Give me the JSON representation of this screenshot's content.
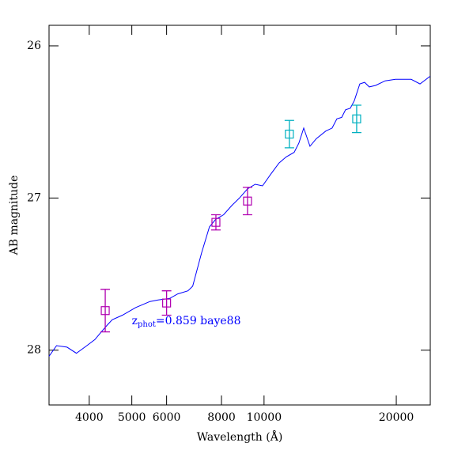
{
  "chart_data": {
    "type": "line",
    "xlabel": "Wavelength (Å)",
    "ylabel": "AB magnitude",
    "annotation": {
      "parts": [
        "z",
        "phot",
        "=0.859 baye88"
      ],
      "color": "#0000ff",
      "x": 5000,
      "y": 27.81
    },
    "log_x": true,
    "inverted_y": true,
    "xlim": [
      3240,
      23900
    ],
    "ylim": [
      28.36,
      25.865
    ],
    "xticks": [
      4000,
      5000,
      6000,
      8000,
      10000,
      20000
    ],
    "yticks": [
      26,
      27,
      28
    ],
    "series": [
      {
        "color": "#0000ff",
        "x": [
          3240,
          3370,
          3560,
          3740,
          3950,
          4120,
          4260,
          4380,
          4510,
          4760,
          5100,
          5500,
          5740,
          6100,
          6360,
          6710,
          6880,
          7210,
          7510,
          7760,
          8090,
          8440,
          8790,
          9170,
          9550,
          9920,
          10380,
          10820,
          11230,
          11710,
          12000,
          12310,
          12720,
          13150,
          13820,
          14290,
          14650,
          15020,
          15330,
          15720,
          16050,
          16520,
          16940,
          17360,
          17950,
          18870,
          19910,
          20930,
          21630,
          22650,
          23890
        ],
        "values": [
          28.04,
          27.97,
          27.98,
          28.02,
          27.97,
          27.93,
          27.88,
          27.84,
          27.8,
          27.77,
          27.72,
          27.68,
          27.67,
          27.66,
          27.63,
          27.61,
          27.58,
          27.36,
          27.19,
          27.14,
          27.11,
          27.05,
          27.0,
          26.94,
          26.91,
          26.92,
          26.84,
          26.77,
          26.73,
          26.7,
          26.64,
          26.54,
          26.66,
          26.61,
          26.56,
          26.54,
          26.48,
          26.47,
          26.42,
          26.41,
          26.36,
          26.25,
          26.24,
          26.27,
          26.26,
          26.23,
          26.22,
          26.22,
          26.22,
          26.25,
          26.2
        ]
      },
      {
        "color": "#b000b0",
        "x": [
          4350,
          6000,
          7770,
          9170
        ],
        "values": [
          27.74,
          27.69,
          27.16,
          27.02
        ],
        "errors": [
          0.14,
          0.08,
          0.05,
          0.09
        ]
      },
      {
        "color": "#00b0c0",
        "x": [
          11420,
          16250
        ],
        "values": [
          26.58,
          26.48
        ],
        "errors": [
          0.09,
          0.09
        ]
      }
    ]
  }
}
